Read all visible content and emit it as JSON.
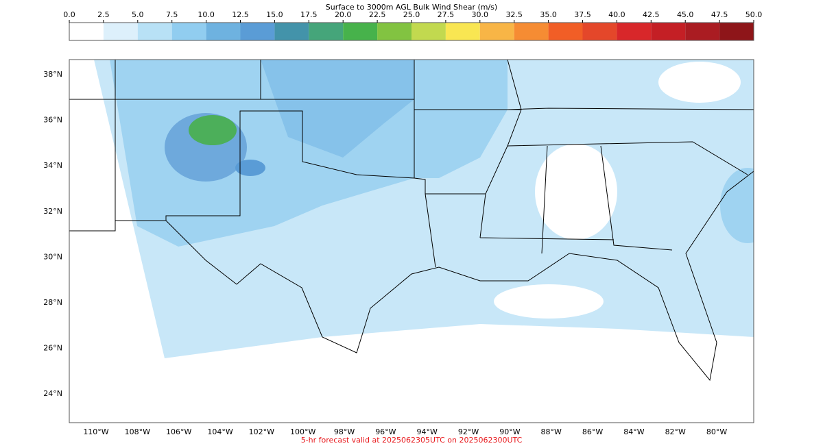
{
  "colorbar": {
    "title": "Surface to 3000m AGL Bulk Wind Shear (m/s)",
    "ticks": [
      {
        "value": 0,
        "label": "0.0"
      },
      {
        "value": 2.5,
        "label": "2.5"
      },
      {
        "value": 5,
        "label": "5.0"
      },
      {
        "value": 7.5,
        "label": "7.5"
      },
      {
        "value": 10,
        "label": "10.0"
      },
      {
        "value": 12.5,
        "label": "12.5"
      },
      {
        "value": 15,
        "label": "15.0"
      },
      {
        "value": 17.5,
        "label": "17.5"
      },
      {
        "value": 20,
        "label": "20.0"
      },
      {
        "value": 22.5,
        "label": "22.5"
      },
      {
        "value": 25,
        "label": "25.0"
      },
      {
        "value": 27.5,
        "label": "27.5"
      },
      {
        "value": 30,
        "label": "30.0"
      },
      {
        "value": 32.5,
        "label": "32.5"
      },
      {
        "value": 35,
        "label": "35.0"
      },
      {
        "value": 37.5,
        "label": "37.5"
      },
      {
        "value": 40,
        "label": "40.0"
      },
      {
        "value": 42.5,
        "label": "42.5"
      },
      {
        "value": 45,
        "label": "45.0"
      },
      {
        "value": 47.5,
        "label": "47.5"
      },
      {
        "value": 50,
        "label": "50.0"
      }
    ],
    "colors": [
      "#ffffff",
      "#ddf0fb",
      "#b8e1f6",
      "#91cdf0",
      "#6eb2e0",
      "#5a9cd6",
      "#4393aa",
      "#45a57a",
      "#47b24b",
      "#82c341",
      "#c2d94f",
      "#f9e652",
      "#f8b546",
      "#f68c33",
      "#f15e26",
      "#e4472a",
      "#d8272a",
      "#c41f25",
      "#aa1c22",
      "#8e1519"
    ]
  },
  "map": {
    "lat_labels": [
      {
        "value": 38,
        "label": "38°N"
      },
      {
        "value": 36,
        "label": "36°N"
      },
      {
        "value": 34,
        "label": "34°N"
      },
      {
        "value": 32,
        "label": "32°N"
      },
      {
        "value": 30,
        "label": "30°N"
      },
      {
        "value": 28,
        "label": "28°N"
      },
      {
        "value": 26,
        "label": "26°N"
      },
      {
        "value": 24,
        "label": "24°N"
      }
    ],
    "lon_labels": [
      {
        "value": -110,
        "label": "110°W"
      },
      {
        "value": -108,
        "label": "108°W"
      },
      {
        "value": -106,
        "label": "106°W"
      },
      {
        "value": -104,
        "label": "104°W"
      },
      {
        "value": -102,
        "label": "102°W"
      },
      {
        "value": -100,
        "label": "100°W"
      },
      {
        "value": -98,
        "label": "98°W"
      },
      {
        "value": -96,
        "label": "96°W"
      },
      {
        "value": -94,
        "label": "94°W"
      },
      {
        "value": -92,
        "label": "92°W"
      },
      {
        "value": -90,
        "label": "90°W"
      },
      {
        "value": -88,
        "label": "88°W"
      },
      {
        "value": -86,
        "label": "86°W"
      },
      {
        "value": -84,
        "label": "84°W"
      },
      {
        "value": -82,
        "label": "82°W"
      },
      {
        "value": -80,
        "label": "80°W"
      }
    ]
  },
  "footer": "5-hr forecast valid at 2025062305UTC on 2025062300UTC"
}
